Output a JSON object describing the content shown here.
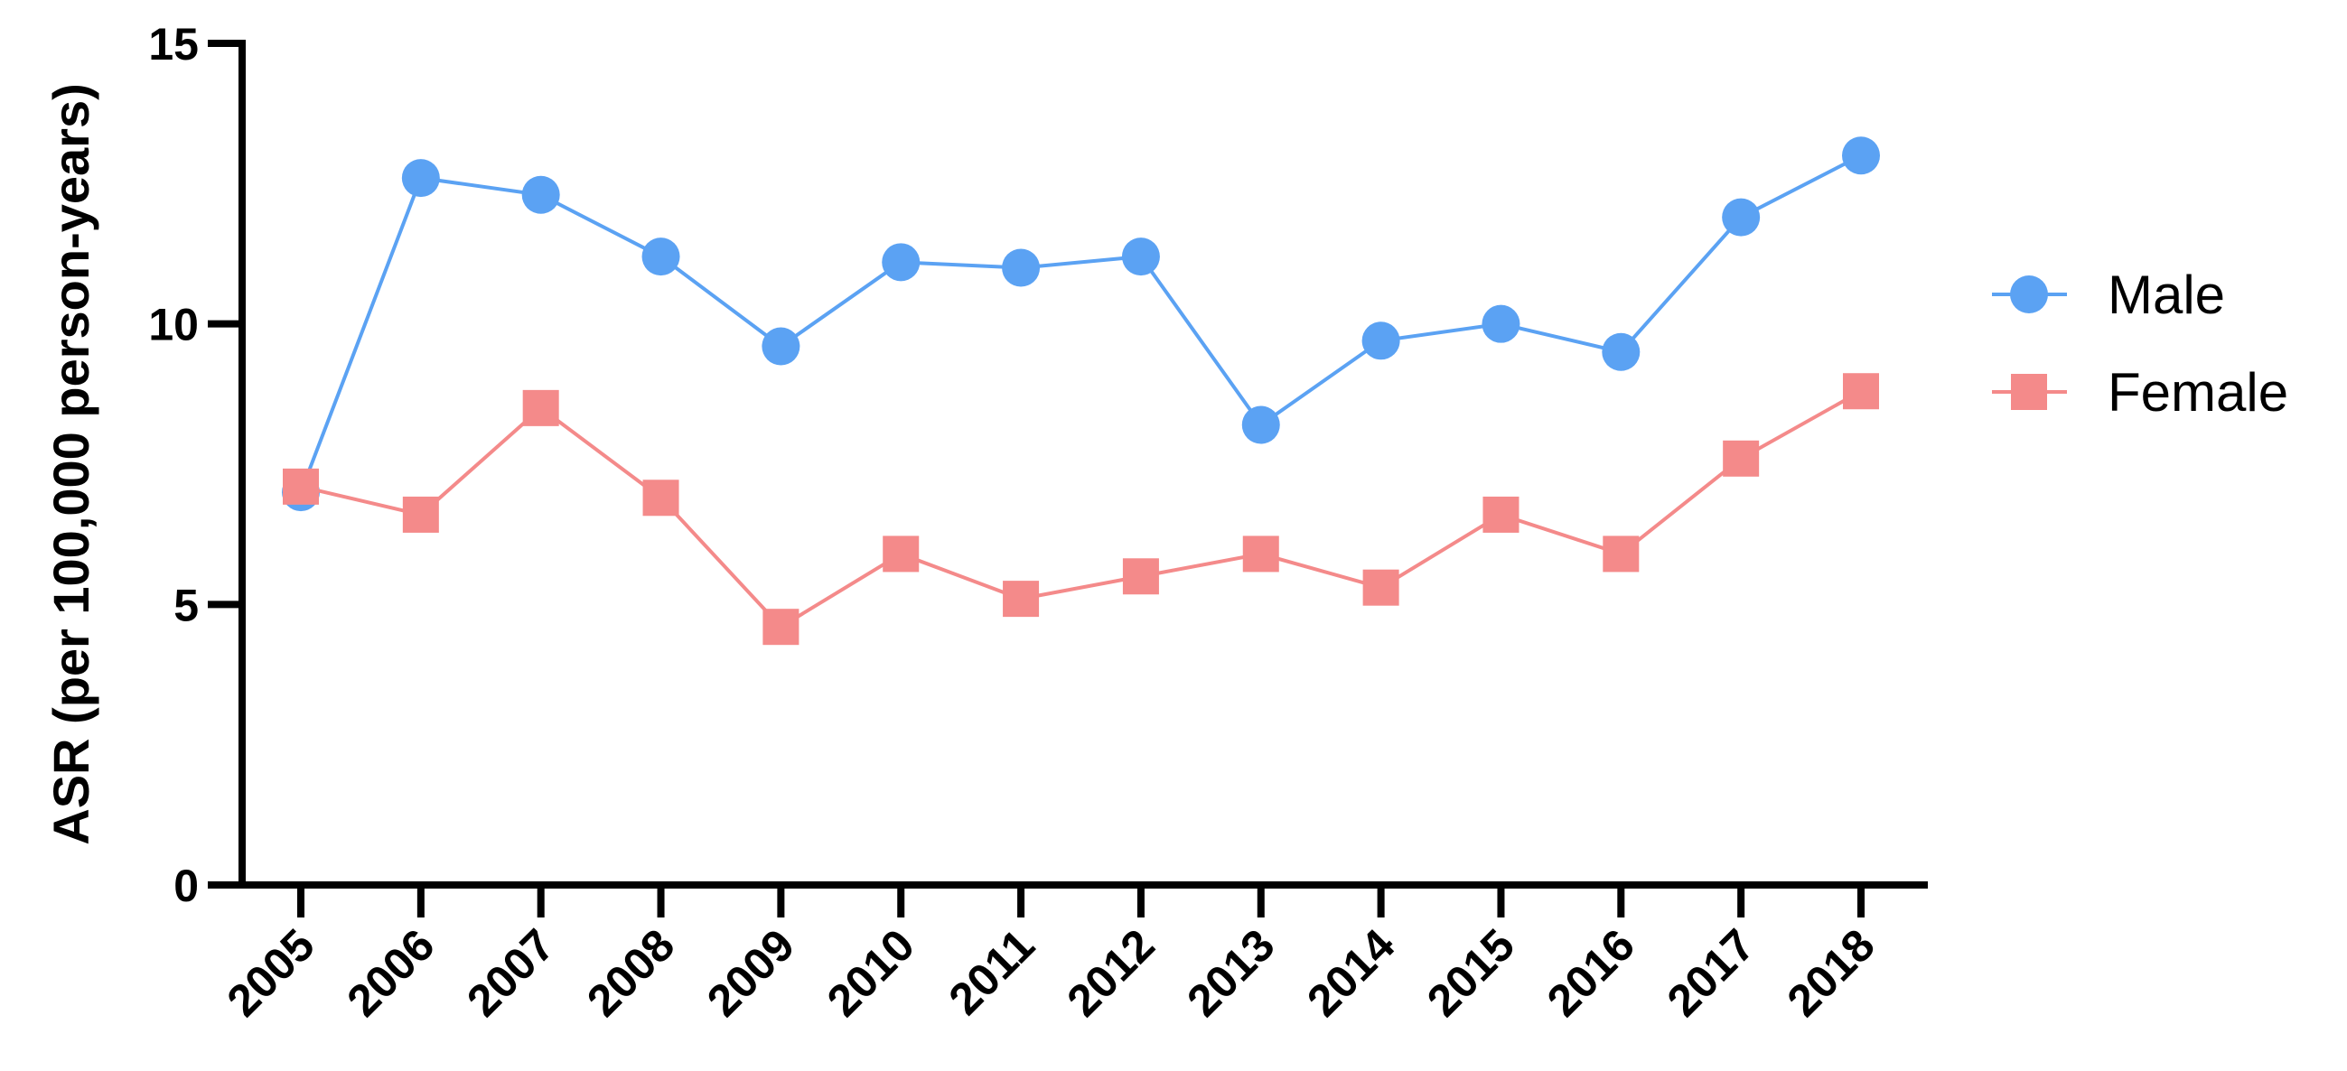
{
  "chart_data": {
    "type": "line",
    "title": "",
    "xlabel": "",
    "ylabel": "ASR (per 100,000 person-years)",
    "x": [
      "2005",
      "2006",
      "2007",
      "2008",
      "2009",
      "2010",
      "2011",
      "2012",
      "2013",
      "2014",
      "2015",
      "2016",
      "2017",
      "2018"
    ],
    "ylim": [
      0,
      15
    ],
    "yticks": [
      "0",
      "5",
      "10",
      "15"
    ],
    "grid": false,
    "legend_position": "right",
    "series": [
      {
        "name": "Male",
        "marker": "circle",
        "color": "#5ba2f3",
        "values": [
          7.0,
          12.6,
          12.3,
          11.2,
          9.6,
          11.1,
          11.0,
          11.2,
          8.2,
          9.7,
          10.0,
          9.5,
          11.9,
          13.0
        ]
      },
      {
        "name": "Female",
        "marker": "square",
        "color": "#f48a8a",
        "values": [
          7.1,
          6.6,
          8.5,
          6.9,
          4.6,
          5.9,
          5.1,
          5.5,
          5.9,
          5.3,
          6.6,
          5.9,
          7.6,
          8.8
        ]
      }
    ]
  }
}
